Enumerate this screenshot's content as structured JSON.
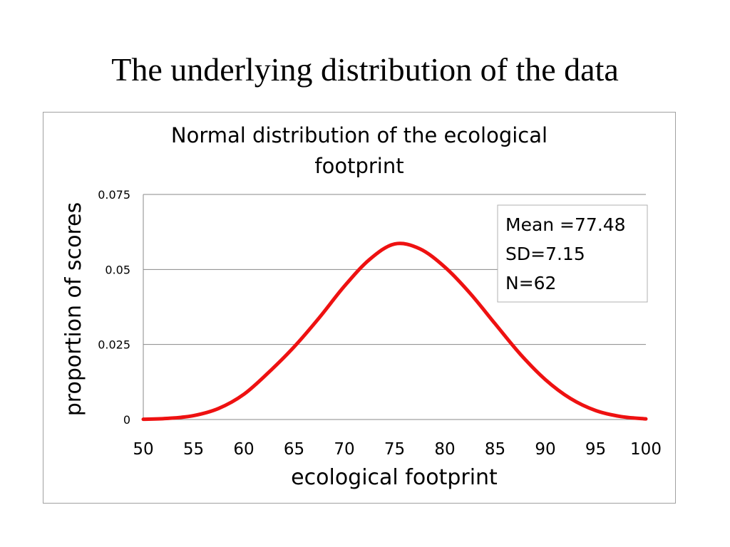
{
  "slide": {
    "title": "The underlying distribution of the data"
  },
  "colors": {
    "curve": "#ee1111",
    "gridline": "#888888",
    "frame_border": "#a0a0a0",
    "text": "#000000"
  },
  "chart_data": {
    "type": "line",
    "title": "Normal distribution of the ecological footprint",
    "title_lines": [
      "Normal distribution of the ecological",
      "footprint"
    ],
    "xlabel": "ecological footprint",
    "ylabel": "proportion of scores",
    "xlim": [
      50,
      100
    ],
    "ylim": [
      0,
      0.075
    ],
    "x_ticks": [
      50,
      55,
      60,
      65,
      70,
      75,
      80,
      85,
      90,
      95,
      100
    ],
    "y_ticks": [
      0,
      0.025,
      0.05,
      0.075
    ],
    "y_tick_labels": [
      "0",
      "0.025",
      "0.05",
      "0.075"
    ],
    "grid": true,
    "legend": "none",
    "annotation": {
      "lines": [
        "Mean =77.48",
        "SD=7.15",
        "N=62"
      ],
      "placement": "top-right"
    },
    "series": [
      {
        "x": [
          50,
          52.5,
          55,
          57.5,
          60,
          62.5,
          65,
          67.5,
          70,
          72.5,
          75,
          77.5,
          80,
          82.5,
          85,
          87.5,
          90,
          92.5,
          95,
          97.5,
          100
        ],
        "values": [
          8e-05,
          0.00038,
          0.0013,
          0.0037,
          0.0084,
          0.0158,
          0.0242,
          0.0339,
          0.0444,
          0.0533,
          0.0585,
          0.0569,
          0.0508,
          0.0421,
          0.0319,
          0.0218,
          0.0133,
          0.007,
          0.003,
          0.001,
          0.0002
        ]
      }
    ]
  }
}
